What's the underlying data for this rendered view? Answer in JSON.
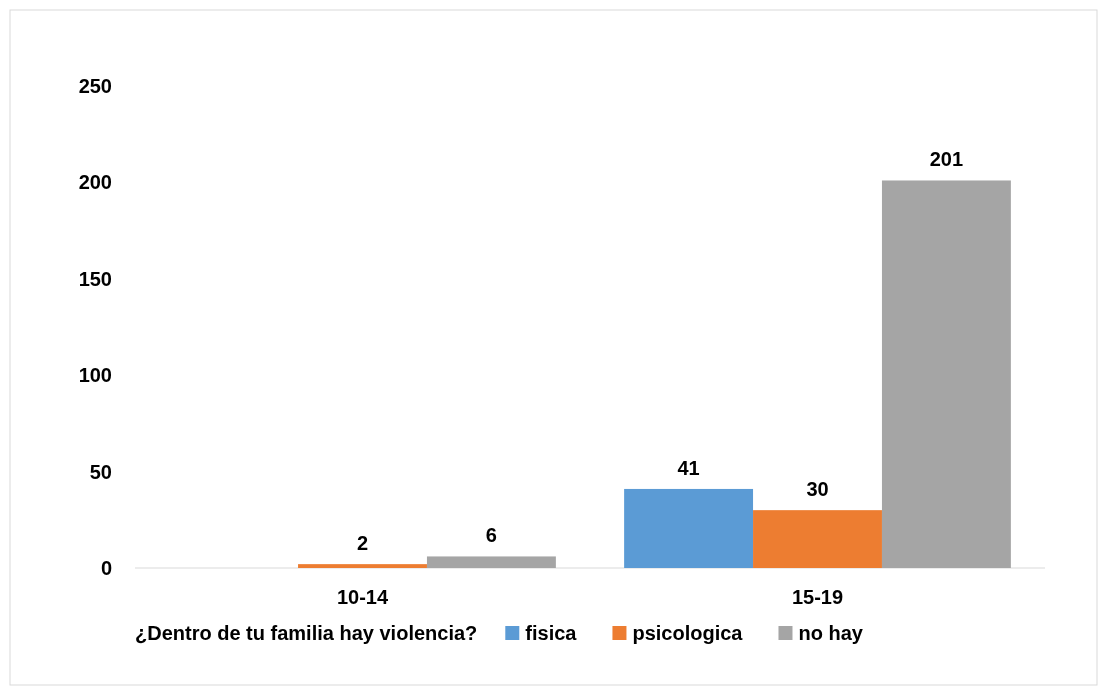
{
  "chart_data": {
    "type": "bar",
    "legend_title": "¿Dentro de tu familia hay violencia?",
    "categories": [
      "10-14",
      "15-19"
    ],
    "series": [
      {
        "name": "fisica",
        "color": "#5b9bd5",
        "values": [
          null,
          41
        ]
      },
      {
        "name": "psicologica",
        "color": "#ed7d31",
        "values": [
          2,
          30
        ]
      },
      {
        "name": "no hay",
        "color": "#a5a5a5",
        "values": [
          6,
          201
        ]
      }
    ],
    "ylim": [
      0,
      250
    ],
    "yticks": [
      0,
      50,
      100,
      150,
      200,
      250
    ],
    "grid": false,
    "legend": "bottom",
    "data_labels": true
  }
}
